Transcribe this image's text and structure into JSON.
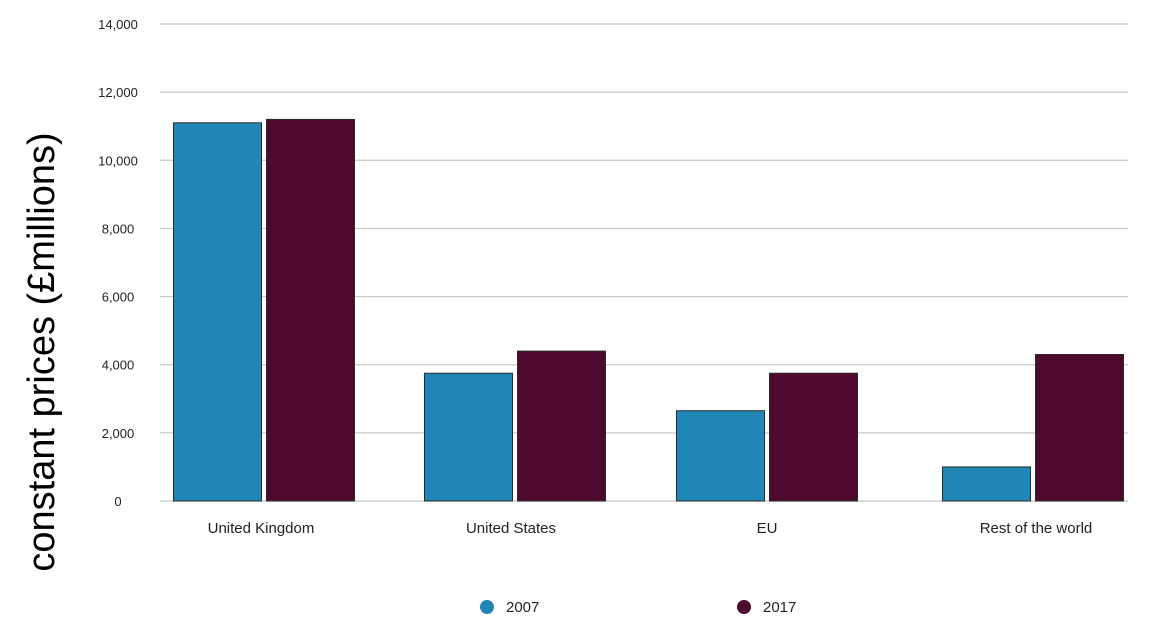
{
  "chart_data": {
    "type": "bar",
    "title": "",
    "xlabel": "",
    "ylabel": "constant prices (£millions)",
    "categories": [
      "United Kingdom",
      "United States",
      "EU",
      "Rest of the world"
    ],
    "series": [
      {
        "name": "2007",
        "color": "#1f86b5",
        "values": [
          11100,
          3750,
          2650,
          1000
        ]
      },
      {
        "name": "2017",
        "color": "#4e0a2e",
        "values": [
          11200,
          4400,
          3750,
          4300
        ]
      }
    ],
    "ylim": [
      0,
      14000
    ],
    "yticks": [
      0,
      2000,
      4000,
      6000,
      8000,
      10000,
      12000,
      14000
    ],
    "ytick_labels": [
      "0",
      "2,000",
      "4,000",
      "6,000",
      "8,000",
      "10,000",
      "12,000",
      "14,000"
    ],
    "grid": true,
    "legend_position": "bottom-center"
  }
}
